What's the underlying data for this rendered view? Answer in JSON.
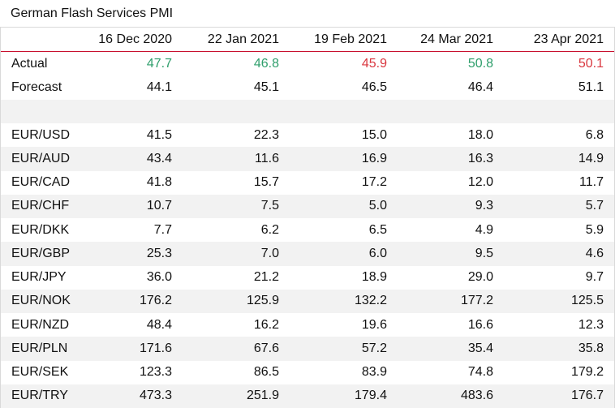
{
  "title": "German Flash Services PMI",
  "columns": [
    "",
    "16 Dec 2020",
    "22 Jan 2021",
    "19 Feb 2021",
    "24 Mar 2021",
    "23 Apr 2021"
  ],
  "actual": {
    "label": "Actual",
    "values": [
      "47.7",
      "46.8",
      "45.9",
      "50.8",
      "50.1"
    ],
    "colors": [
      "pos",
      "pos",
      "neg",
      "pos",
      "neg"
    ]
  },
  "forecast": {
    "label": "Forecast",
    "values": [
      "44.1",
      "45.1",
      "46.5",
      "46.4",
      "51.1"
    ]
  },
  "pairs": [
    {
      "label": "EUR/USD",
      "values": [
        "41.5",
        "22.3",
        "15.0",
        "18.0",
        "6.8"
      ]
    },
    {
      "label": "EUR/AUD",
      "values": [
        "43.4",
        "11.6",
        "16.9",
        "16.3",
        "14.9"
      ]
    },
    {
      "label": "EUR/CAD",
      "values": [
        "41.8",
        "15.7",
        "17.2",
        "12.0",
        "11.7"
      ]
    },
    {
      "label": "EUR/CHF",
      "values": [
        "10.7",
        "7.5",
        "5.0",
        "9.3",
        "5.7"
      ]
    },
    {
      "label": "EUR/DKK",
      "values": [
        "7.7",
        "6.2",
        "6.5",
        "4.9",
        "5.9"
      ]
    },
    {
      "label": "EUR/GBP",
      "values": [
        "25.3",
        "7.0",
        "6.0",
        "9.5",
        "4.6"
      ]
    },
    {
      "label": "EUR/JPY",
      "values": [
        "36.0",
        "21.2",
        "18.9",
        "29.0",
        "9.7"
      ]
    },
    {
      "label": "EUR/NOK",
      "values": [
        "176.2",
        "125.9",
        "132.2",
        "177.2",
        "125.5"
      ]
    },
    {
      "label": "EUR/NZD",
      "values": [
        "48.4",
        "16.2",
        "19.6",
        "16.6",
        "12.3"
      ]
    },
    {
      "label": "EUR/PLN",
      "values": [
        "171.6",
        "67.6",
        "57.2",
        "35.4",
        "35.8"
      ]
    },
    {
      "label": "EUR/SEK",
      "values": [
        "123.3",
        "86.5",
        "83.9",
        "74.8",
        "179.2"
      ]
    },
    {
      "label": "EUR/TRY",
      "values": [
        "473.3",
        "251.9",
        "179.4",
        "483.6",
        "176.7"
      ]
    }
  ],
  "colors": {
    "positive": "#2e9e6b",
    "negative": "#d9363e",
    "header_rule": "#c8102e",
    "row_stripe": "#f2f2f2"
  }
}
